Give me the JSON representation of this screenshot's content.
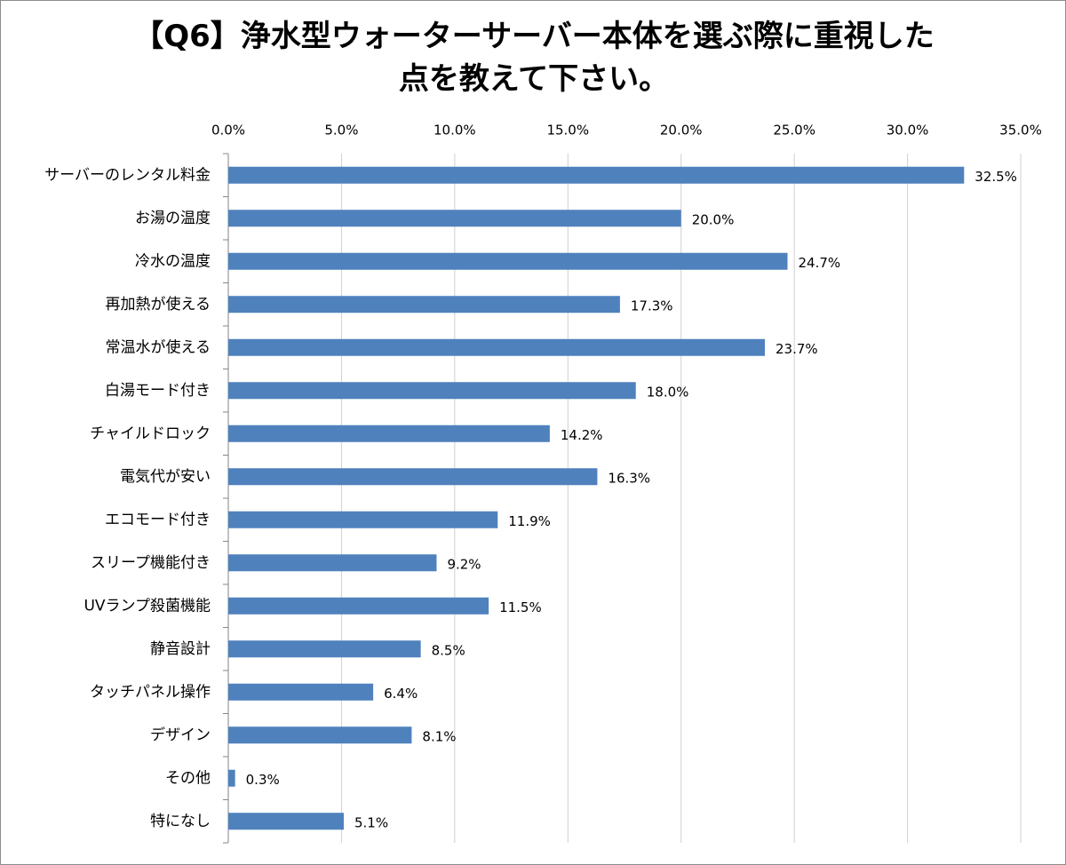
{
  "chart_data": {
    "type": "bar",
    "orientation": "horizontal",
    "title": "【Q6】浄水型ウォーターサーバー本体を選ぶ際に重視した点を教えて下さい。",
    "categories": [
      "サーバーのレンタル料金",
      "お湯の温度",
      "冷水の温度",
      "再加熱が使える",
      "常温水が使える",
      "白湯モード付き",
      "チャイルドロック",
      "電気代が安い",
      "エコモード付き",
      "スリープ機能付き",
      "UVランプ殺菌機能",
      "静音設計",
      "タッチパネル操作",
      "デザイン",
      "その他",
      "特になし"
    ],
    "values": [
      32.5,
      20.0,
      24.7,
      17.3,
      23.7,
      18.0,
      14.2,
      16.3,
      11.9,
      9.2,
      11.5,
      8.5,
      6.4,
      8.1,
      0.3,
      5.1
    ],
    "value_labels": [
      "32.5%",
      "20.0%",
      "24.7%",
      "17.3%",
      "23.7%",
      "18.0%",
      "14.2%",
      "16.3%",
      "11.9%",
      "9.2%",
      "11.5%",
      "8.5%",
      "6.4%",
      "8.1%",
      "0.3%",
      "5.1%"
    ],
    "color": "#4f81bd",
    "xlim": [
      0,
      35
    ],
    "xticks": [
      {
        "value": 0,
        "label": "0.0%"
      },
      {
        "value": 5,
        "label": "5.0%"
      },
      {
        "value": 10,
        "label": "10.0%"
      },
      {
        "value": 15,
        "label": "15.0%"
      },
      {
        "value": 20,
        "label": "20.0%"
      },
      {
        "value": 25,
        "label": "25.0%"
      },
      {
        "value": 30,
        "label": "30.0%"
      },
      {
        "value": 35,
        "label": "35.0%"
      }
    ],
    "grid": true
  }
}
